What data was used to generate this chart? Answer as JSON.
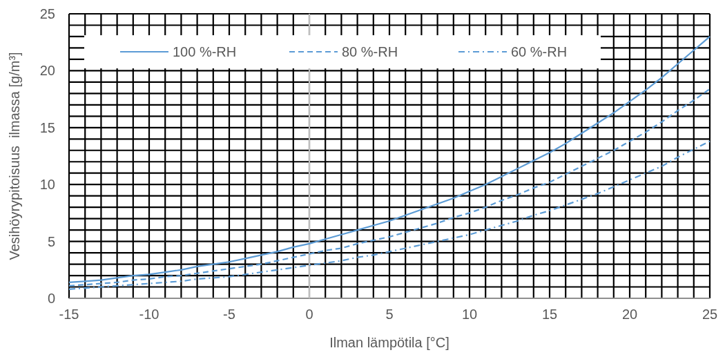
{
  "chart_data": {
    "type": "line",
    "xlabel": "Ilman lämpötila [°C]",
    "ylabel": "Vesihöyrypitoisuus  ilmassa [g/m³]",
    "x": [
      -15,
      -14,
      -13,
      -12,
      -11,
      -10,
      -9,
      -8,
      -7,
      -6,
      -5,
      -4,
      -3,
      -2,
      -1,
      0,
      1,
      2,
      3,
      4,
      5,
      6,
      7,
      8,
      9,
      10,
      11,
      12,
      13,
      14,
      15,
      16,
      17,
      18,
      19,
      20,
      21,
      22,
      23,
      24,
      25
    ],
    "series": [
      {
        "name": "100 %-RH",
        "color": "#5b9bd5",
        "line_style": "solid",
        "values": [
          1.4,
          1.5,
          1.6,
          1.8,
          2.0,
          2.1,
          2.3,
          2.5,
          2.8,
          3.0,
          3.2,
          3.5,
          3.8,
          4.1,
          4.5,
          4.8,
          5.2,
          5.6,
          6.0,
          6.4,
          6.8,
          7.3,
          7.8,
          8.3,
          8.8,
          9.4,
          10.0,
          10.7,
          11.4,
          12.1,
          12.8,
          13.6,
          14.5,
          15.4,
          16.3,
          17.3,
          18.3,
          19.4,
          20.6,
          21.8,
          23.0
        ]
      },
      {
        "name": "80 %-RH",
        "color": "#5b9bd5",
        "line_style": "dashed",
        "values": [
          1.1,
          1.2,
          1.3,
          1.4,
          1.6,
          1.7,
          1.9,
          2.0,
          2.2,
          2.4,
          2.6,
          2.8,
          3.0,
          3.3,
          3.6,
          3.9,
          4.2,
          4.4,
          4.8,
          5.1,
          5.4,
          5.8,
          6.2,
          6.6,
          7.1,
          7.5,
          8.0,
          8.6,
          9.1,
          9.7,
          10.2,
          10.9,
          11.6,
          12.3,
          13.0,
          13.8,
          14.6,
          15.5,
          16.5,
          17.4,
          18.4
        ]
      },
      {
        "name": "60 %-RH",
        "color": "#5b9bd5",
        "line_style": "dashdot",
        "values": [
          0.8,
          0.9,
          1.0,
          1.1,
          1.2,
          1.3,
          1.4,
          1.5,
          1.7,
          1.8,
          1.9,
          2.1,
          2.3,
          2.5,
          2.7,
          2.9,
          3.1,
          3.3,
          3.6,
          3.8,
          4.1,
          4.4,
          4.7,
          5.0,
          5.3,
          5.6,
          6.0,
          6.4,
          6.8,
          7.3,
          7.7,
          8.2,
          8.7,
          9.2,
          9.8,
          10.4,
          11.0,
          11.6,
          12.4,
          13.1,
          13.8
        ]
      }
    ],
    "xlim": [
      -15,
      25
    ],
    "ylim": [
      0,
      25
    ],
    "xticks": [
      -15,
      {
        "value": -14,
        "label": null
      },
      {
        "value": -13,
        "label": null
      },
      {
        "value": -12,
        "label": null
      },
      {
        "value": -11,
        "label": null
      },
      -10,
      {
        "value": -9,
        "label": null
      },
      {
        "value": -8,
        "label": null
      },
      {
        "value": -7,
        "label": null
      },
      {
        "value": -6,
        "label": null
      },
      -5,
      {
        "value": -4,
        "label": null
      },
      {
        "value": -3,
        "label": null
      },
      {
        "value": -2,
        "label": null
      },
      {
        "value": -1,
        "label": null
      },
      0,
      {
        "value": 1,
        "label": null
      },
      {
        "value": 2,
        "label": null
      },
      {
        "value": 3,
        "label": null
      },
      {
        "value": 4,
        "label": null
      },
      5,
      {
        "value": 6,
        "label": null
      },
      {
        "value": 7,
        "label": null
      },
      {
        "value": 8,
        "label": null
      },
      {
        "value": 9,
        "label": null
      },
      10,
      {
        "value": 11,
        "label": null
      },
      {
        "value": 12,
        "label": null
      },
      {
        "value": 13,
        "label": null
      },
      {
        "value": 14,
        "label": null
      },
      15,
      {
        "value": 16,
        "label": null
      },
      {
        "value": 17,
        "label": null
      },
      {
        "value": 18,
        "label": null
      },
      {
        "value": 19,
        "label": null
      },
      20,
      {
        "value": 21,
        "label": null
      },
      {
        "value": 22,
        "label": null
      },
      {
        "value": 23,
        "label": null
      },
      {
        "value": 24,
        "label": null
      },
      25
    ],
    "yticks": [
      0,
      {
        "value": 1,
        "label": null
      },
      {
        "value": 2,
        "label": null
      },
      {
        "value": 3,
        "label": null
      },
      {
        "value": 4,
        "label": null
      },
      5,
      {
        "value": 6,
        "label": null
      },
      {
        "value": 7,
        "label": null
      },
      {
        "value": 8,
        "label": null
      },
      {
        "value": 9,
        "label": null
      },
      10,
      {
        "value": 11,
        "label": null
      },
      {
        "value": 12,
        "label": null
      },
      {
        "value": 13,
        "label": null
      },
      {
        "value": 14,
        "label": null
      },
      15,
      {
        "value": 16,
        "label": null
      },
      {
        "value": 17,
        "label": null
      },
      {
        "value": 18,
        "label": null
      },
      {
        "value": 19,
        "label": null
      },
      20,
      {
        "value": 21,
        "label": null
      },
      {
        "value": 22,
        "label": null
      },
      {
        "value": 23,
        "label": null
      },
      {
        "value": 24,
        "label": null
      },
      25
    ],
    "grid": true,
    "legend": "top",
    "ref_lines": [
      {
        "axis": "x",
        "value": 0,
        "color": "#bfbfbf"
      }
    ]
  }
}
